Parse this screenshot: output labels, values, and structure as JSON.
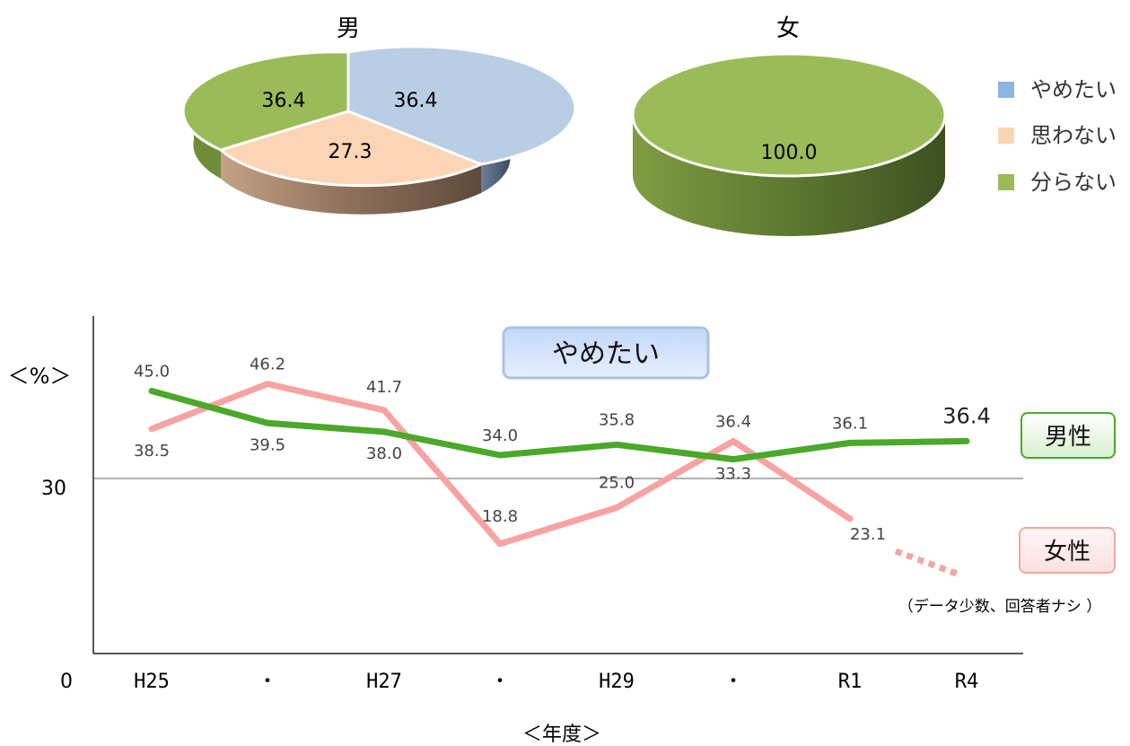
{
  "pies": {
    "male": {
      "title": "男",
      "slices": [
        {
          "legend_index": 0,
          "value": 36.4,
          "label": "36.4"
        },
        {
          "legend_index": 1,
          "value": 27.3,
          "label": "27.3"
        },
        {
          "legend_index": 2,
          "value": 36.4,
          "label": "36.4"
        }
      ]
    },
    "female": {
      "title": "女",
      "slices": [
        {
          "legend_index": 2,
          "value": 100.0,
          "label": "100.0"
        }
      ]
    },
    "legend": [
      {
        "label": "やめたい",
        "color": "#8db4e2"
      },
      {
        "label": "思わない",
        "color": "#fcd5b5"
      },
      {
        "label": "分らない",
        "color": "#9bbb59"
      }
    ]
  },
  "line_chart": {
    "title": "やめたい",
    "y_unit_label": "＜%＞",
    "x_axis_label": "＜年度＞",
    "y_ticks": [
      {
        "value": 0,
        "label": "0"
      },
      {
        "value": 30,
        "label": "30"
      }
    ],
    "ylim": [
      0,
      52
    ],
    "categories": [
      "H25",
      "・",
      "H27",
      "・",
      "H29",
      "・",
      "R1",
      "R4"
    ],
    "series": [
      {
        "name": "男性",
        "color": "#4aa82a",
        "values": [
          45.0,
          39.5,
          38.0,
          34.0,
          35.8,
          33.3,
          36.1,
          36.4
        ],
        "labels": [
          "45.0",
          "39.5",
          "38.0",
          "34.0",
          "35.8",
          "33.3",
          "36.1",
          "36.4"
        ]
      },
      {
        "name": "女性",
        "color": "#f7a3a3",
        "values": [
          38.5,
          46.2,
          41.7,
          18.8,
          25.0,
          36.4,
          23.1,
          null
        ],
        "labels": [
          "38.5",
          "46.2",
          "41.7",
          "18.8",
          "25.0",
          "36.4",
          "23.1",
          ""
        ]
      }
    ],
    "note": "（データ少数、回答者ナシ ）"
  },
  "chart_data": [
    {
      "type": "pie",
      "title": "男",
      "categories": [
        "やめたい",
        "思わない",
        "分らない"
      ],
      "values": [
        36.4,
        27.3,
        36.4
      ]
    },
    {
      "type": "pie",
      "title": "女",
      "categories": [
        "やめたい",
        "思わない",
        "分らない"
      ],
      "values": [
        0,
        0,
        100.0
      ]
    },
    {
      "type": "line",
      "title": "やめたい",
      "categories": [
        "H25",
        "・",
        "H27",
        "・",
        "H29",
        "・",
        "R1",
        "R4"
      ],
      "series": [
        {
          "name": "男性",
          "values": [
            45.0,
            39.5,
            38.0,
            34.0,
            35.8,
            33.3,
            36.1,
            36.4
          ]
        },
        {
          "name": "女性",
          "values": [
            38.5,
            46.2,
            41.7,
            18.8,
            25.0,
            36.4,
            23.1,
            null
          ]
        }
      ],
      "xlabel": "＜年度＞",
      "ylabel": "＜%＞",
      "ylim": [
        0,
        52
      ],
      "grid": false,
      "legend": "right"
    }
  ]
}
